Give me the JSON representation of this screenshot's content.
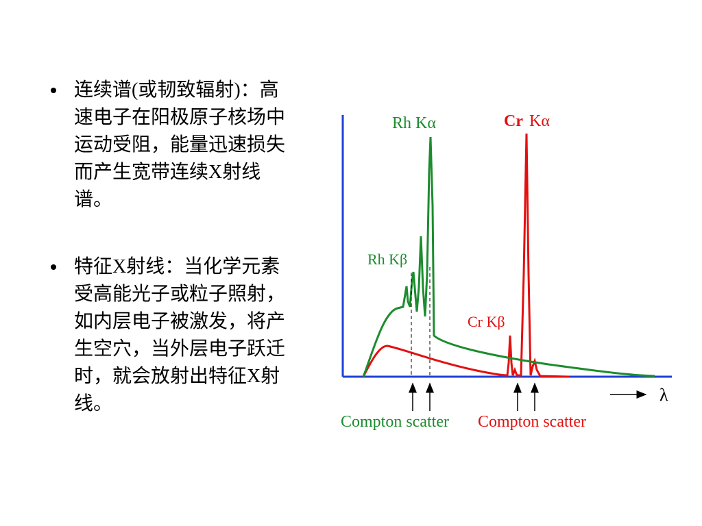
{
  "bullets": [
    {
      "lines": [
        "连续谱(或韧致辐射)：高",
        "速电子在阳极原子核场中",
        "运动受阻，能量迅速损失",
        "而产生宽带连续X射线",
        "谱。"
      ]
    },
    {
      "lines": [
        "特征X射线：当化学元素",
        "受高能光子或粒子照射，",
        "如内层电子被激发，将产",
        "生空穴，当外层电子跃迁",
        "时，就会放射出特征X射",
        "线。"
      ]
    }
  ],
  "figure": {
    "rh_ka": "Rh Kα",
    "cr": "Cr",
    "cr_ka": "Kα",
    "rh_kb": "Rh Kβ",
    "cr_kb": "Cr Kβ",
    "compton_left": "Compton scatter",
    "compton_right": "Compton scatter",
    "lambda": "λ"
  }
}
